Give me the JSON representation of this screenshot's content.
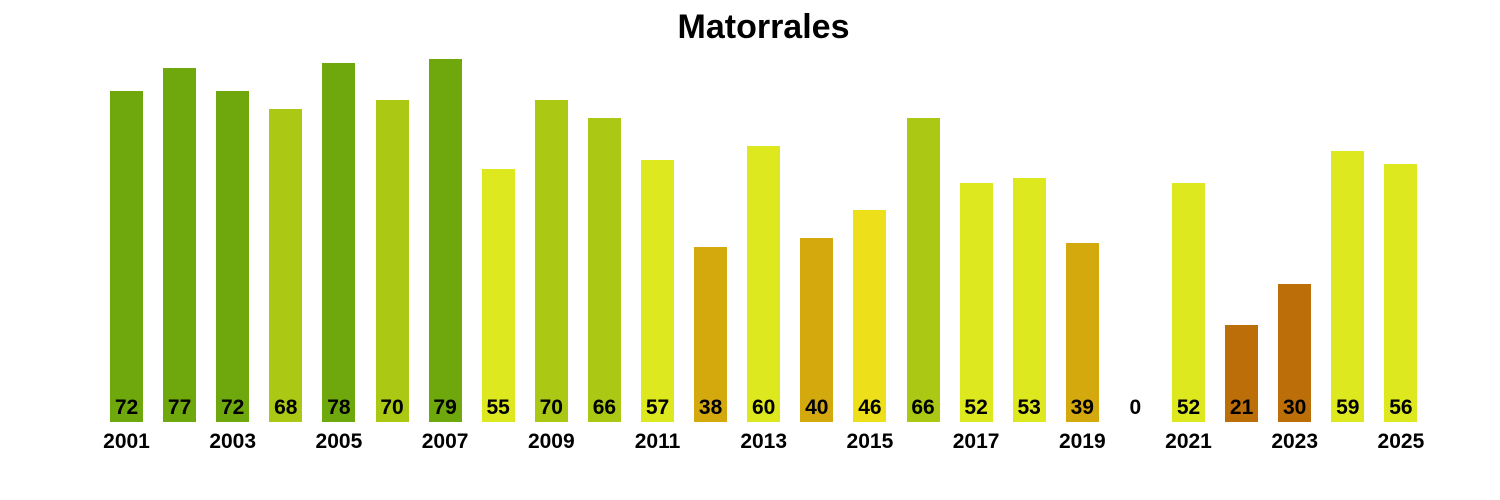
{
  "title": "Matorrales",
  "chart_data": {
    "type": "bar",
    "title": "Matorrales",
    "x": [
      2001,
      2002,
      2003,
      2004,
      2005,
      2006,
      2007,
      2008,
      2009,
      2010,
      2011,
      2012,
      2013,
      2014,
      2015,
      2016,
      2017,
      2018,
      2019,
      2020,
      2021,
      2022,
      2023,
      2024,
      2025
    ],
    "values": [
      72,
      77,
      72,
      68,
      78,
      70,
      79,
      55,
      70,
      66,
      57,
      38,
      60,
      40,
      46,
      66,
      52,
      53,
      39,
      0,
      52,
      21,
      30,
      59,
      56
    ],
    "bar_colors": [
      "#6FA80D",
      "#6FA80D",
      "#6FA80D",
      "#AAC814",
      "#6FA80D",
      "#AAC814",
      "#6FA80D",
      "#DDE81E",
      "#AAC814",
      "#AAC814",
      "#DDE81E",
      "#D4A90E",
      "#DDE81E",
      "#D4A90E",
      "#EDE01A",
      "#AAC814",
      "#DDE81E",
      "#DDE81E",
      "#D4A90E",
      "#DDE81E",
      "#DDE81E",
      "#BC6E08",
      "#BC6E08",
      "#DDE81E",
      "#DDE81E"
    ],
    "x_tick_labels": [
      "2001",
      "2003",
      "2005",
      "2007",
      "2009",
      "2011",
      "2013",
      "2015",
      "2017",
      "2019",
      "2021",
      "2023",
      "2025"
    ],
    "value_labels_shown": true,
    "ylim": [
      0,
      80
    ],
    "grid": false,
    "legend_position": "none",
    "background_color": "#ffffff",
    "text_color": "#000000"
  }
}
